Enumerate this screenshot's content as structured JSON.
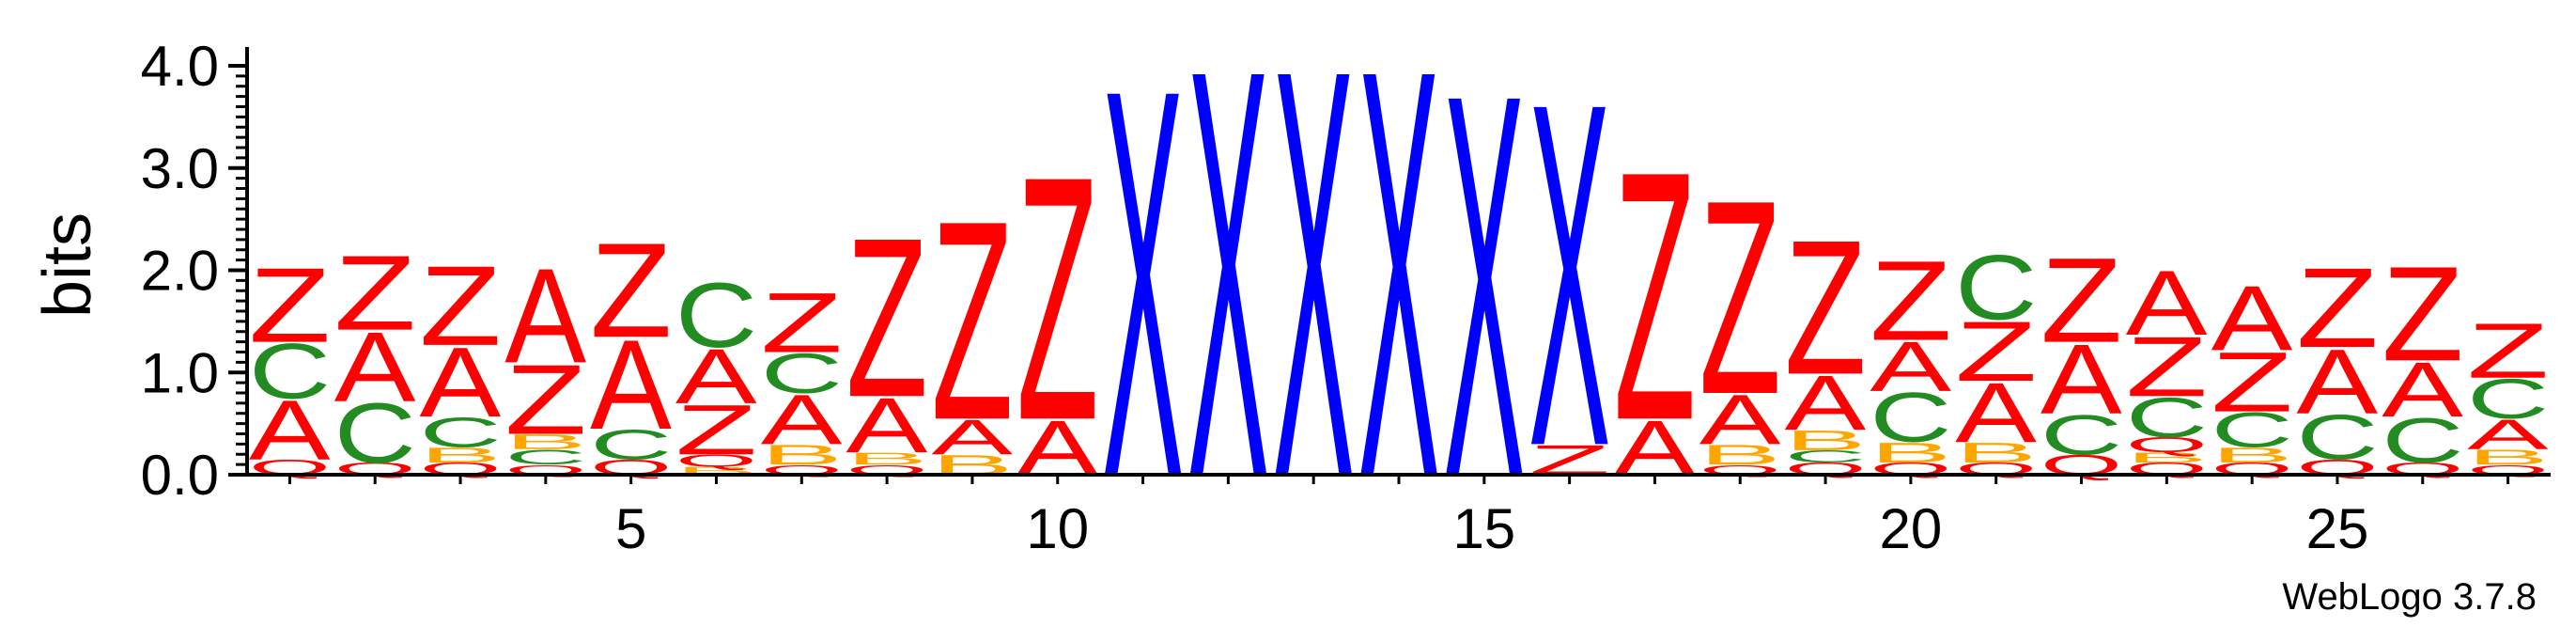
{
  "chart_data": {
    "type": "sequence-logo",
    "ylabel": "bits",
    "ylim": [
      0,
      4.0
    ],
    "xlim": [
      0.5,
      27.5
    ],
    "y_ticks": [
      "0.0",
      "1.0",
      "2.0",
      "3.0",
      "4.0"
    ],
    "x_ticks": [
      "5",
      "10",
      "15",
      "20",
      "25"
    ],
    "credit": "WebLogo 3.7.8",
    "colors": {
      "A": "#ff0000",
      "Z": "#ff0000",
      "C": "#228b22",
      "B": "#ffa500",
      "Q": "#ff0000",
      "X": "#0000ff"
    },
    "positions": [
      {
        "pos": 1,
        "stack": [
          [
            "Q",
            0.15
          ],
          [
            "A",
            0.6
          ],
          [
            "C",
            0.55
          ],
          [
            "Z",
            0.75
          ]
        ]
      },
      {
        "pos": 2,
        "stack": [
          [
            "Q",
            0.12
          ],
          [
            "C",
            0.6
          ],
          [
            "A",
            0.7
          ],
          [
            "Z",
            0.75
          ]
        ]
      },
      {
        "pos": 3,
        "stack": [
          [
            "Q",
            0.12
          ],
          [
            "B",
            0.15
          ],
          [
            "C",
            0.3
          ],
          [
            "A",
            0.7
          ],
          [
            "Z",
            0.8
          ]
        ]
      },
      {
        "pos": 4,
        "stack": [
          [
            "Q",
            0.1
          ],
          [
            "C",
            0.15
          ],
          [
            "B",
            0.15
          ],
          [
            "Z",
            0.7
          ],
          [
            "A",
            0.95
          ]
        ]
      },
      {
        "pos": 5,
        "stack": [
          [
            "Q",
            0.15
          ],
          [
            "C",
            0.3
          ],
          [
            "A",
            0.9
          ],
          [
            "Z",
            0.95
          ]
        ]
      },
      {
        "pos": 6,
        "stack": [
          [
            "B",
            0.08
          ],
          [
            "Q",
            0.12
          ],
          [
            "Z",
            0.5
          ],
          [
            "A",
            0.55
          ],
          [
            "C",
            0.65
          ]
        ]
      },
      {
        "pos": 7,
        "stack": [
          [
            "Q",
            0.1
          ],
          [
            "B",
            0.2
          ],
          [
            "A",
            0.5
          ],
          [
            "C",
            0.4
          ],
          [
            "Z",
            0.6
          ]
        ]
      },
      {
        "pos": 8,
        "stack": [
          [
            "Q",
            0.1
          ],
          [
            "B",
            0.12
          ],
          [
            "A",
            0.55
          ],
          [
            "Z",
            1.6
          ]
        ]
      },
      {
        "pos": 9,
        "stack": [
          [
            "B",
            0.2
          ],
          [
            "A",
            0.35
          ],
          [
            "Z",
            2.0
          ]
        ]
      },
      {
        "pos": 10,
        "stack": [
          [
            "A",
            0.55
          ],
          [
            "Z",
            2.45
          ]
        ]
      },
      {
        "pos": 11,
        "stack": [
          [
            "X",
            3.9
          ]
        ]
      },
      {
        "pos": 12,
        "stack": [
          [
            "X",
            4.1
          ]
        ]
      },
      {
        "pos": 13,
        "stack": [
          [
            "X",
            4.1
          ]
        ]
      },
      {
        "pos": 14,
        "stack": [
          [
            "X",
            4.1
          ]
        ]
      },
      {
        "pos": 15,
        "stack": [
          [
            "X",
            3.85
          ]
        ]
      },
      {
        "pos": 16,
        "stack": [
          [
            "Z",
            0.3
          ],
          [
            "X",
            3.45
          ]
        ]
      },
      {
        "pos": 17,
        "stack": [
          [
            "A",
            0.55
          ],
          [
            "Z",
            2.5
          ]
        ]
      },
      {
        "pos": 18,
        "stack": [
          [
            "Q",
            0.1
          ],
          [
            "B",
            0.2
          ],
          [
            "A",
            0.5
          ],
          [
            "Z",
            1.95
          ]
        ]
      },
      {
        "pos": 19,
        "stack": [
          [
            "Q",
            0.12
          ],
          [
            "C",
            0.12
          ],
          [
            "B",
            0.2
          ],
          [
            "A",
            0.55
          ],
          [
            "Z",
            1.35
          ]
        ]
      },
      {
        "pos": 20,
        "stack": [
          [
            "Q",
            0.12
          ],
          [
            "B",
            0.2
          ],
          [
            "C",
            0.5
          ],
          [
            "A",
            0.5
          ],
          [
            "Z",
            0.8
          ]
        ]
      },
      {
        "pos": 21,
        "stack": [
          [
            "Q",
            0.12
          ],
          [
            "B",
            0.2
          ],
          [
            "A",
            0.6
          ],
          [
            "Z",
            0.6
          ],
          [
            "C",
            0.65
          ]
        ]
      },
      {
        "pos": 22,
        "stack": [
          [
            "Q",
            0.2
          ],
          [
            "C",
            0.4
          ],
          [
            "A",
            0.7
          ],
          [
            "Z",
            0.85
          ]
        ]
      },
      {
        "pos": 23,
        "stack": [
          [
            "Q",
            0.12
          ],
          [
            "B",
            0.1
          ],
          [
            "Q",
            0.15
          ],
          [
            "C",
            0.4
          ],
          [
            "Z",
            0.6
          ],
          [
            "A",
            0.65
          ]
        ]
      },
      {
        "pos": 24,
        "stack": [
          [
            "Q",
            0.12
          ],
          [
            "B",
            0.15
          ],
          [
            "C",
            0.35
          ],
          [
            "Z",
            0.6
          ],
          [
            "A",
            0.65
          ]
        ]
      },
      {
        "pos": 25,
        "stack": [
          [
            "Q",
            0.15
          ],
          [
            "C",
            0.45
          ],
          [
            "A",
            0.65
          ],
          [
            "Z",
            0.8
          ]
        ]
      },
      {
        "pos": 26,
        "stack": [
          [
            "Q",
            0.12
          ],
          [
            "C",
            0.45
          ],
          [
            "A",
            0.55
          ],
          [
            "Z",
            0.95
          ]
        ]
      },
      {
        "pos": 27,
        "stack": [
          [
            "Q",
            0.1
          ],
          [
            "B",
            0.15
          ],
          [
            "A",
            0.3
          ],
          [
            "C",
            0.4
          ],
          [
            "Z",
            0.55
          ]
        ]
      }
    ]
  }
}
